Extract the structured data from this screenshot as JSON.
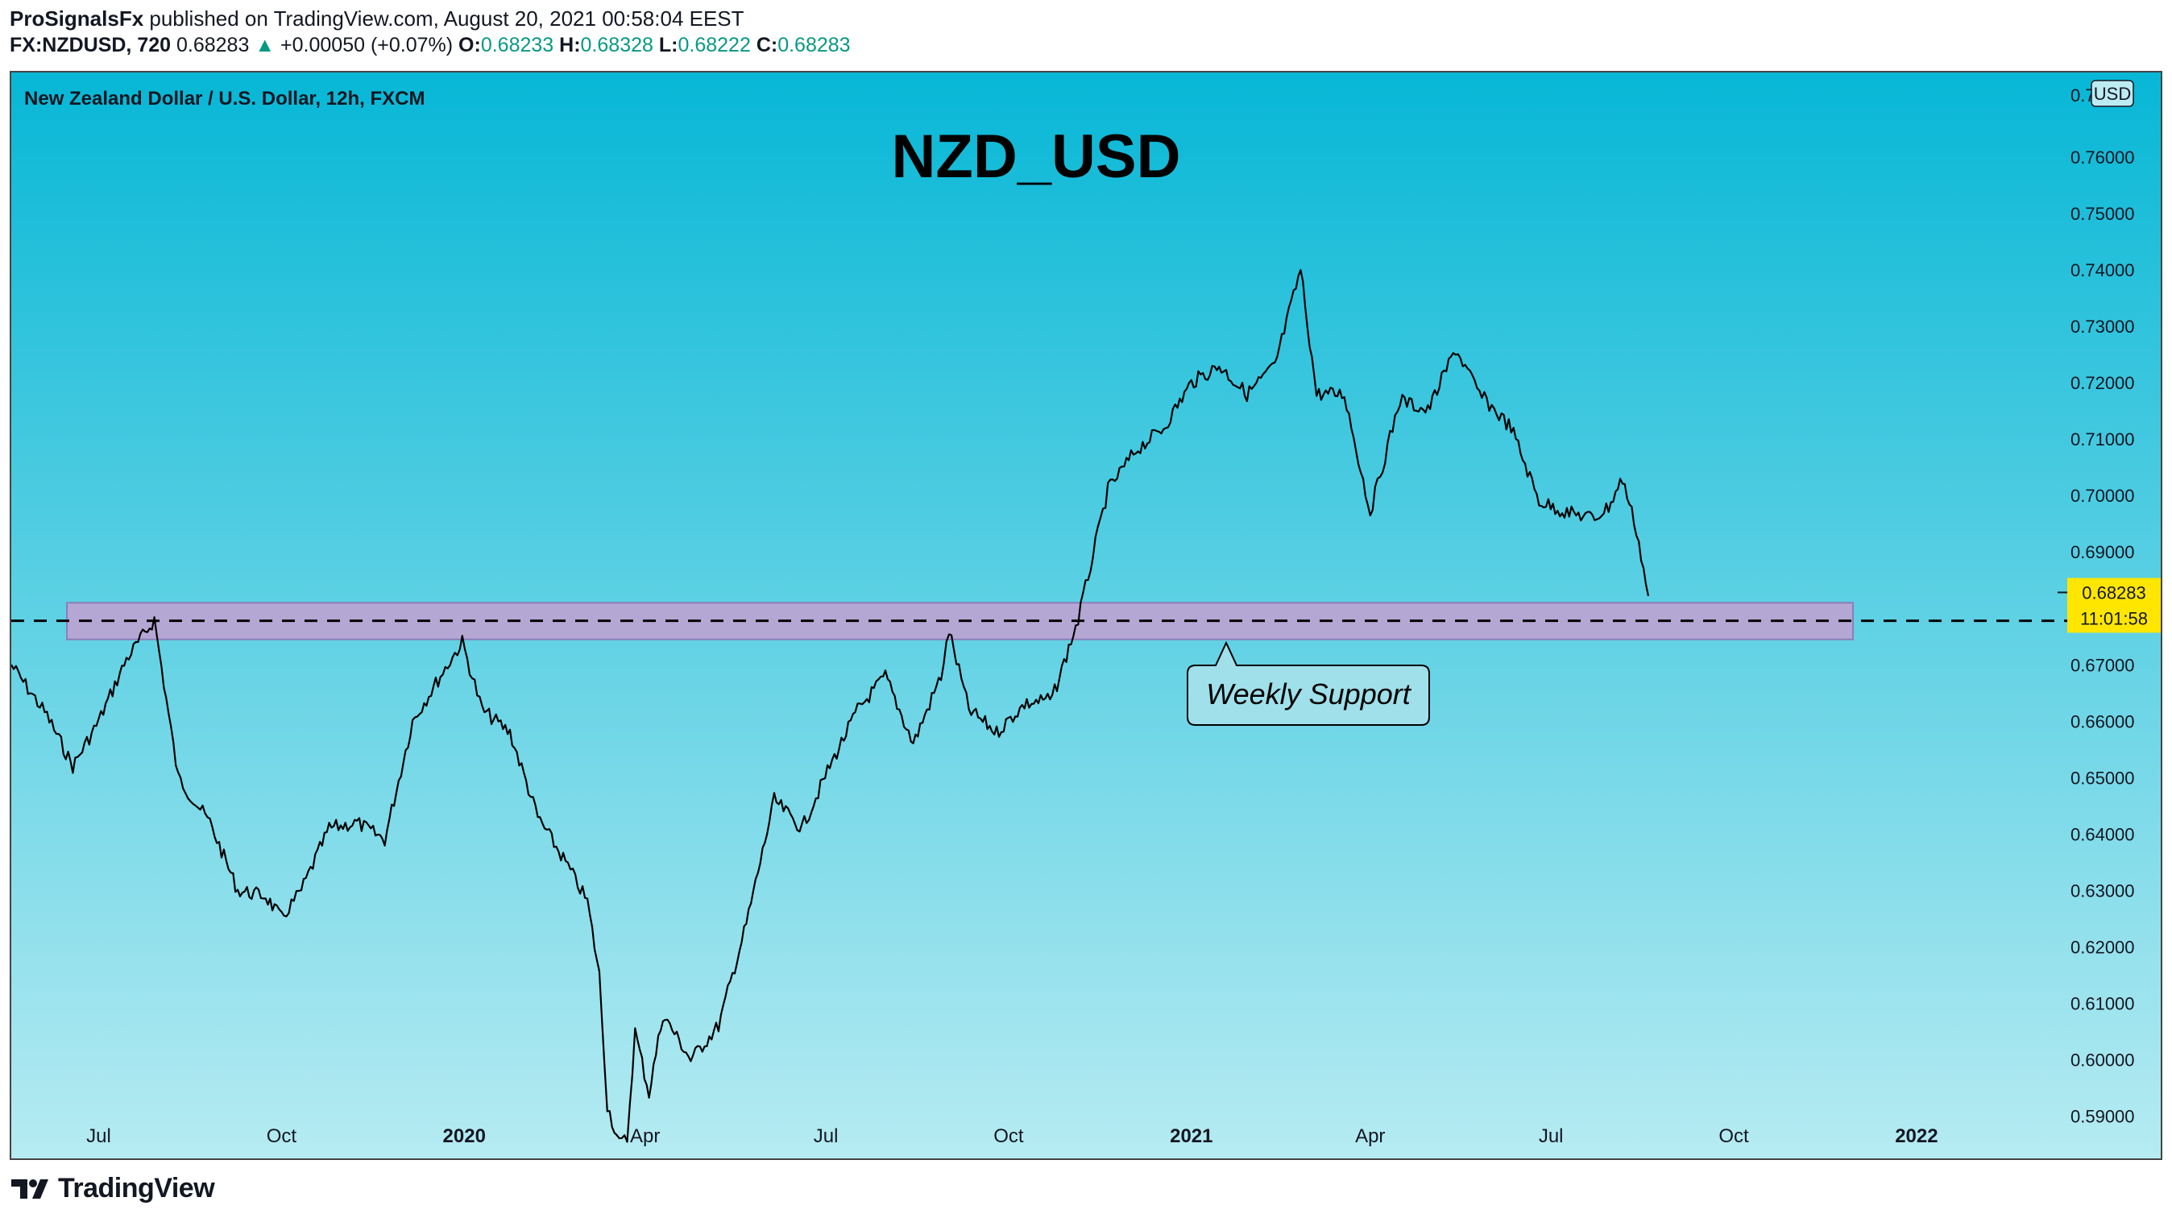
{
  "header": {
    "author": "ProSignalsFx",
    "published_text": "published on TradingView.com, August 20, 2021 00:58:04 EEST",
    "symbol": "FX:NZDUSD, 720",
    "last": "0.68283",
    "change": "+0.00050 (+0.07%)",
    "o_label": "O:",
    "o_value": "0.68233",
    "h_label": "H:",
    "h_value": "0.68328",
    "l_label": "L:",
    "l_value": "0.68222",
    "c_label": "C:",
    "c_value": "0.68283"
  },
  "footer": {
    "brand": "TradingView"
  },
  "colors": {
    "bg_top": "#07b7d6",
    "bg_bottom": "#b6ebf2",
    "candle": "#000000",
    "zone_fill": "#b5a7d3",
    "zone_stroke": "#8b7fb8",
    "price_tag": "#ffe600",
    "up": "#089981"
  },
  "chart_data": {
    "type": "line",
    "instrument": "New Zealand Dollar / U.S. Dollar, 12h, FXCM",
    "title": "NZD_USD",
    "currency_badge": "USD",
    "y_axis": {
      "ticks": [
        0.59,
        0.6,
        0.61,
        0.62,
        0.63,
        0.64,
        0.65,
        0.66,
        0.67,
        0.68,
        0.69,
        0.7,
        0.71,
        0.72,
        0.73,
        0.74,
        0.75,
        0.76
      ],
      "tick_labels": [
        "0.59000",
        "0.60000",
        "0.61000",
        "0.62000",
        "0.63000",
        "0.64000",
        "0.65000",
        "0.66000",
        "0.67000",
        "0.68000",
        "0.69000",
        "0.70000",
        "0.71000",
        "0.72000",
        "0.73000",
        "0.74000",
        "0.75000",
        "0.76000"
      ],
      "ylim": [
        0.5825,
        0.775
      ],
      "top_partial_label": "0.7"
    },
    "x_axis": {
      "xlim": [
        "2019-05-18",
        "2022-03-13"
      ],
      "ticks": [
        {
          "date": "2019-07-01",
          "label": "Jul",
          "bold": false
        },
        {
          "date": "2019-10-01",
          "label": "Oct",
          "bold": false
        },
        {
          "date": "2020-01-01",
          "label": "2020",
          "bold": true
        },
        {
          "date": "2020-04-01",
          "label": "Apr",
          "bold": false
        },
        {
          "date": "2020-07-01",
          "label": "Jul",
          "bold": false
        },
        {
          "date": "2020-10-01",
          "label": "Oct",
          "bold": false
        },
        {
          "date": "2021-01-01",
          "label": "2021",
          "bold": true
        },
        {
          "date": "2021-04-01",
          "label": "Apr",
          "bold": false
        },
        {
          "date": "2021-07-01",
          "label": "Jul",
          "bold": false
        },
        {
          "date": "2021-10-01",
          "label": "Oct",
          "bold": false
        },
        {
          "date": "2022-01-01",
          "label": "2022",
          "bold": true
        }
      ]
    },
    "series": [
      {
        "x": [
          "2019-05-18",
          "2019-06-05",
          "2019-06-18",
          "2019-07-01",
          "2019-07-15",
          "2019-07-29",
          "2019-08-10",
          "2019-08-26",
          "2019-09-09",
          "2019-09-23",
          "2019-10-01",
          "2019-10-11",
          "2019-10-25",
          "2019-11-08",
          "2019-11-22",
          "2019-12-06",
          "2019-12-20",
          "2019-12-31",
          "2020-01-10",
          "2020-01-24",
          "2020-02-07",
          "2020-02-21",
          "2020-03-03",
          "2020-03-09",
          "2020-03-13",
          "2020-03-19",
          "2020-03-23",
          "2020-03-27",
          "2020-04-03",
          "2020-04-10",
          "2020-04-24",
          "2020-05-08",
          "2020-05-22",
          "2020-06-05",
          "2020-06-19",
          "2020-07-03",
          "2020-07-17",
          "2020-07-31",
          "2020-08-14",
          "2020-08-28",
          "2020-09-01",
          "2020-09-11",
          "2020-09-25",
          "2020-10-09",
          "2020-10-23",
          "2020-11-05",
          "2020-11-20",
          "2020-12-04",
          "2020-12-18",
          "2021-01-01",
          "2021-01-15",
          "2021-01-29",
          "2021-02-12",
          "2021-02-25",
          "2021-03-05",
          "2021-03-19",
          "2021-04-01",
          "2021-04-16",
          "2021-04-30",
          "2021-05-14",
          "2021-05-26",
          "2021-06-11",
          "2021-06-25",
          "2021-07-09",
          "2021-07-23",
          "2021-07-30",
          "2021-08-06",
          "2021-08-13",
          "2021-08-19"
        ],
        "y": [
          0.67,
          0.661,
          0.652,
          0.66,
          0.671,
          0.678,
          0.65,
          0.642,
          0.63,
          0.629,
          0.625,
          0.63,
          0.641,
          0.642,
          0.639,
          0.66,
          0.668,
          0.674,
          0.662,
          0.658,
          0.643,
          0.635,
          0.628,
          0.615,
          0.592,
          0.585,
          0.586,
          0.605,
          0.594,
          0.608,
          0.6,
          0.606,
          0.624,
          0.646,
          0.641,
          0.652,
          0.662,
          0.668,
          0.656,
          0.668,
          0.676,
          0.662,
          0.658,
          0.663,
          0.664,
          0.678,
          0.701,
          0.708,
          0.712,
          0.72,
          0.723,
          0.718,
          0.723,
          0.74,
          0.718,
          0.718,
          0.697,
          0.717,
          0.715,
          0.726,
          0.718,
          0.712,
          0.699,
          0.697,
          0.696,
          0.698,
          0.703,
          0.694,
          0.6822
        ]
      }
    ],
    "support_zone": {
      "low": 0.6745,
      "high": 0.681,
      "x_start": "2019-06-15",
      "x_end": "2021-11-30",
      "label": "Weekly Support"
    },
    "support_line": {
      "y": 0.6778
    },
    "last_price": {
      "value": 0.68283,
      "label": "0.68283",
      "countdown": "11:01:58"
    }
  }
}
